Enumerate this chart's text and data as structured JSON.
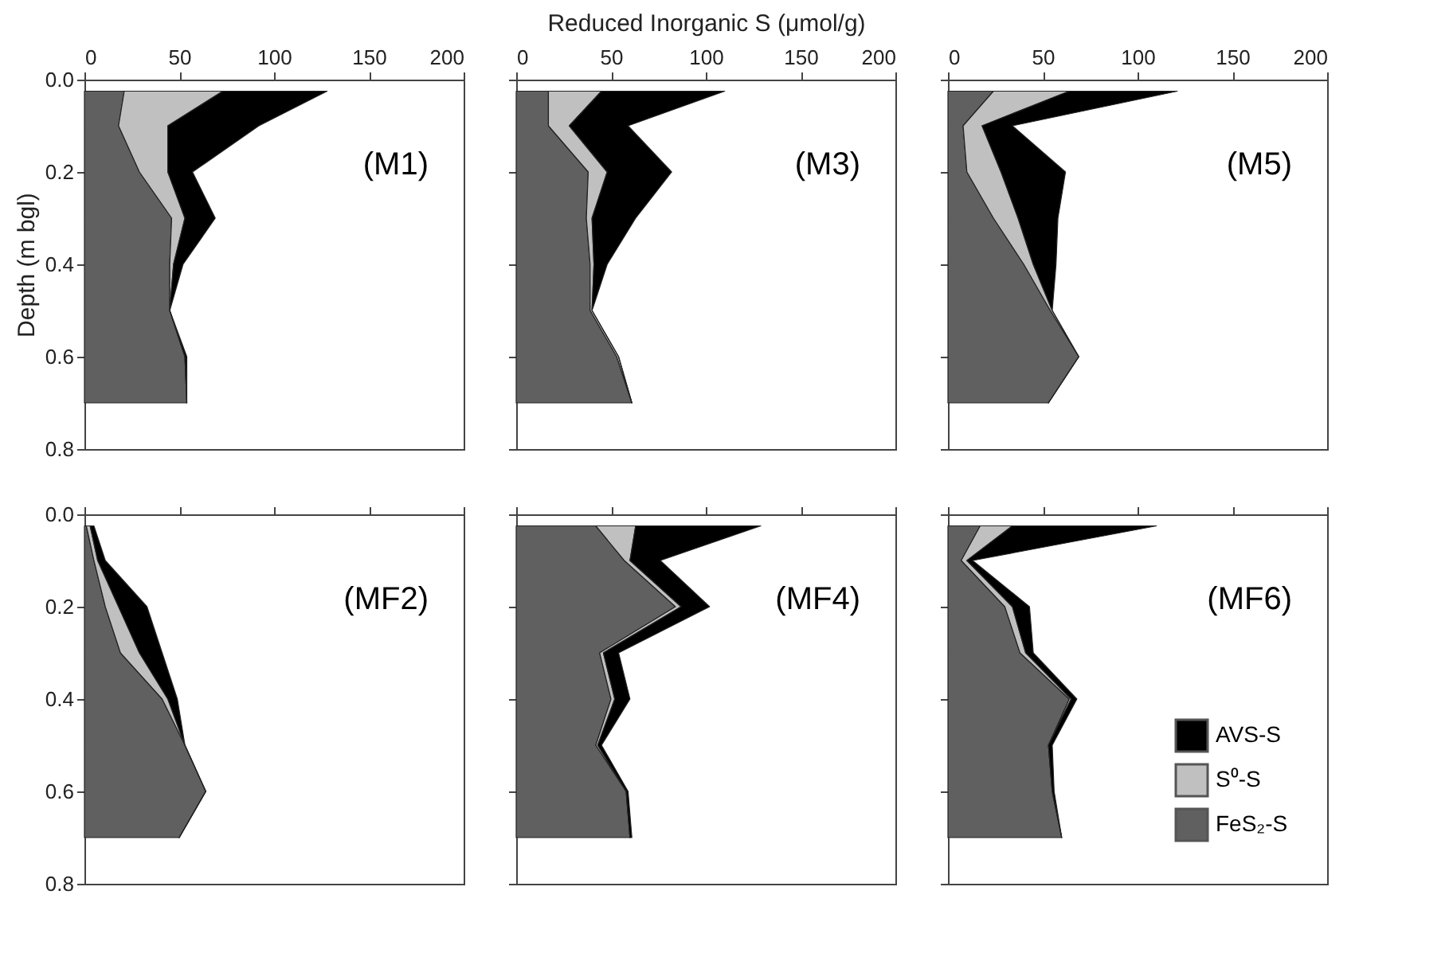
{
  "chart_data": [
    {
      "type": "area",
      "orientation": "horizontal",
      "stacked": true,
      "ylabel": "Depth (m bgl)",
      "annotations": [
        "(M1)"
      ],
      "x": [
        0.025,
        0.1,
        0.2,
        0.3,
        0.4,
        0.5,
        0.6,
        0.7
      ],
      "xlim": [
        0,
        200
      ],
      "xticks": [
        0,
        50,
        100,
        150,
        200
      ],
      "ylim": [
        0.8,
        0
      ],
      "yticks": [
        {
          "value": 0,
          "label": "0.0"
        },
        0.2,
        0.4,
        0.6,
        0.8
      ],
      "grid": false,
      "legend": false,
      "series": [
        {
          "color": "#606060",
          "values": [
            21,
            18,
            29,
            46,
            45,
            45,
            53,
            54
          ]
        },
        {
          "color": "#c0c0c0",
          "values": [
            52,
            26,
            15,
            7,
            2,
            0,
            0,
            0
          ]
        },
        {
          "color": "#000000",
          "values": [
            55,
            48,
            13,
            16,
            5,
            0,
            1,
            0
          ]
        }
      ]
    },
    {
      "type": "area",
      "orientation": "horizontal",
      "stacked": true,
      "xlabel": "Reduced Inorganic S (μmol/g)",
      "annotations": [
        "(M3)"
      ],
      "tick_labels": "x",
      "x": [
        0.025,
        0.1,
        0.2,
        0.3,
        0.4,
        0.5,
        0.6,
        0.7
      ],
      "xlim": [
        0,
        200
      ],
      "xticks": [
        0,
        50,
        100,
        150,
        200
      ],
      "ylim": [
        0.8,
        0
      ],
      "yticks": [
        0,
        0.2,
        0.4,
        0.6,
        0.8
      ],
      "grid": false,
      "legend": false,
      "series": [
        {
          "color": "#606060",
          "values": [
            17,
            17,
            38,
            37,
            39,
            39,
            53,
            61
          ]
        },
        {
          "color": "#c0c0c0",
          "values": [
            28,
            11,
            10,
            3,
            2,
            1,
            1,
            0
          ]
        },
        {
          "color": "#000000",
          "values": [
            65,
            31,
            34,
            23,
            7,
            0,
            0,
            0
          ]
        }
      ]
    },
    {
      "type": "area",
      "orientation": "horizontal",
      "stacked": true,
      "annotations": [
        "(M5)"
      ],
      "tick_labels": "x",
      "x": [
        0.025,
        0.1,
        0.2,
        0.3,
        0.4,
        0.5,
        0.6,
        0.7
      ],
      "xlim": [
        0,
        200
      ],
      "xticks": [
        0,
        50,
        100,
        150,
        200
      ],
      "ylim": [
        0.8,
        0
      ],
      "yticks": [
        0,
        0.2,
        0.4,
        0.6,
        0.8
      ],
      "grid": false,
      "legend": false,
      "series": [
        {
          "color": "#606060",
          "values": [
            24,
            8,
            10,
            24,
            40,
            54,
            69,
            53
          ]
        },
        {
          "color": "#c0c0c0",
          "values": [
            40,
            10,
            18,
            13,
            5,
            1,
            0,
            0
          ]
        },
        {
          "color": "#000000",
          "values": [
            57,
            16,
            34,
            21,
            12,
            0,
            0,
            0
          ]
        }
      ]
    },
    {
      "type": "area",
      "orientation": "horizontal",
      "stacked": true,
      "annotations": [
        "(MF2)"
      ],
      "tick_labels": "y",
      "x": [
        0.025,
        0.1,
        0.2,
        0.3,
        0.4,
        0.5,
        0.6,
        0.7
      ],
      "xlim": [
        0,
        200
      ],
      "xticks": [
        0,
        50,
        100,
        150,
        200
      ],
      "ylim": [
        0.8,
        0
      ],
      "yticks": [
        {
          "value": 0,
          "label": "0.0"
        },
        0.2,
        0.4,
        0.6,
        0.8
      ],
      "grid": false,
      "legend": false,
      "series": [
        {
          "color": "#606060",
          "values": [
            1,
            5,
            11,
            19,
            41,
            53,
            64,
            50
          ]
        },
        {
          "color": "#c0c0c0",
          "values": [
            2,
            2,
            7,
            10,
            3,
            0,
            0,
            0
          ]
        },
        {
          "color": "#000000",
          "values": [
            2,
            4,
            15,
            12,
            5,
            0,
            0,
            0
          ]
        }
      ]
    },
    {
      "type": "area",
      "orientation": "horizontal",
      "stacked": true,
      "annotations": [
        "(MF4)"
      ],
      "tick_labels": false,
      "x": [
        0.025,
        0.1,
        0.2,
        0.3,
        0.4,
        0.5,
        0.6,
        0.7
      ],
      "xlim": [
        0,
        200
      ],
      "xticks": [
        0,
        50,
        100,
        150,
        200
      ],
      "ylim": [
        0.8,
        0
      ],
      "yticks": [
        0,
        0.2,
        0.4,
        0.6,
        0.8
      ],
      "grid": false,
      "legend": false,
      "series": [
        {
          "color": "#606060",
          "values": [
            42,
            57,
            84,
            44,
            50,
            42,
            58,
            60
          ]
        },
        {
          "color": "#c0c0c0",
          "values": [
            21,
            3,
            3,
            2,
            2,
            1,
            0,
            0
          ]
        },
        {
          "color": "#000000",
          "values": [
            66,
            16,
            15,
            8,
            8,
            2,
            1,
            1
          ]
        }
      ]
    },
    {
      "type": "area",
      "orientation": "horizontal",
      "stacked": true,
      "annotations": [
        "(MF6)"
      ],
      "tick_labels": false,
      "x": [
        0.025,
        0.1,
        0.2,
        0.3,
        0.4,
        0.5,
        0.6,
        0.7
      ],
      "xlim": [
        0,
        200
      ],
      "xticks": [
        0,
        50,
        100,
        150,
        200
      ],
      "ylim": [
        0.8,
        0
      ],
      "yticks": [
        0,
        0.2,
        0.4,
        0.6,
        0.8
      ],
      "grid": false,
      "legend": "bottom right",
      "series": [
        {
          "name": "FeS₂-S",
          "color": "#606060",
          "values": [
            17,
            7,
            30,
            38,
            64,
            53,
            55,
            60
          ]
        },
        {
          "name": "S⁰-S",
          "color": "#c0c0c0",
          "values": [
            17,
            3,
            4,
            3,
            1,
            0,
            0,
            0
          ]
        },
        {
          "name": "AVS-S",
          "color": "#000000",
          "values": [
            76,
            3,
            9,
            4,
            3,
            2,
            1,
            0
          ]
        }
      ]
    }
  ]
}
